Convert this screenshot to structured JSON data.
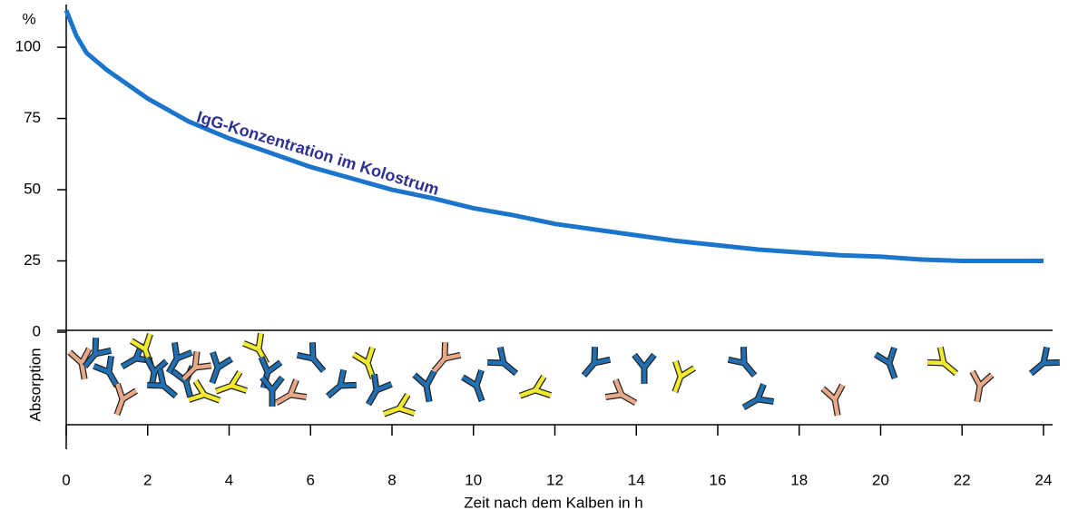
{
  "chart_data": {
    "type": "line",
    "y_unit_label": "%",
    "annotation": "IgG-Konzentration im Kolostrum",
    "band_label": "Absorption",
    "x_label": "Zeit nach dem Kalben in h",
    "x": [
      0,
      0.25,
      0.5,
      1,
      2,
      3,
      4,
      5,
      6,
      7,
      8,
      9,
      10,
      11,
      12,
      13,
      14,
      15,
      16,
      17,
      18,
      19,
      20,
      21,
      22,
      23,
      24
    ],
    "values": [
      113,
      104,
      98,
      92,
      82,
      74,
      68,
      63,
      58,
      54,
      50,
      47,
      43.5,
      41,
      38,
      36,
      34,
      32,
      30.5,
      29,
      28,
      27,
      26.5,
      25.5,
      25,
      25,
      25
    ],
    "color": "#1b75cc",
    "xlim": [
      0,
      24
    ],
    "xticks": [
      0,
      2,
      4,
      6,
      8,
      10,
      12,
      14,
      16,
      18,
      20,
      22,
      24
    ],
    "ylim": [
      0,
      115
    ],
    "yticks": [
      0,
      25,
      50,
      75,
      100
    ]
  }
}
